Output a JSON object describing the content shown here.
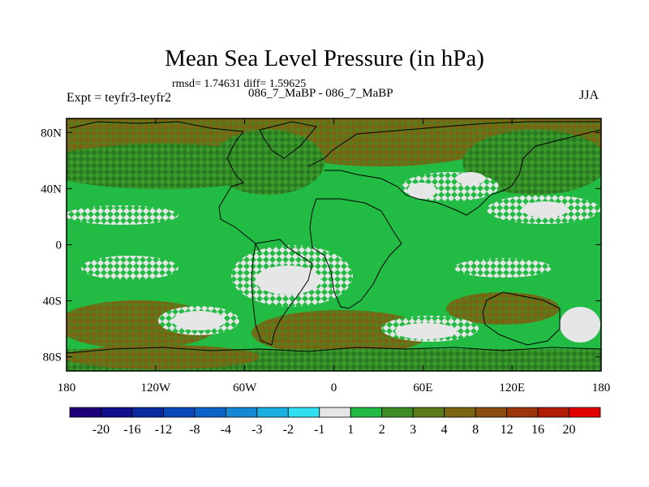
{
  "chart_data": {
    "type": "heatmap",
    "title": "Mean Sea Level Pressure (in hPa)",
    "subtitle": "rmsd= 1.74631 diff= 1.59625",
    "center_label": "086_7_MaBP - 086_7_MaBP",
    "left_label": "Expt = teyfr3-teyfr2",
    "right_label": "JJA",
    "x_axis": {
      "range": [
        -180,
        180
      ],
      "ticks": [
        {
          "value": -180,
          "label": "180"
        },
        {
          "value": -120,
          "label": "120W"
        },
        {
          "value": -60,
          "label": "60W"
        },
        {
          "value": 0,
          "label": "0"
        },
        {
          "value": 60,
          "label": "60E"
        },
        {
          "value": 120,
          "label": "120E"
        },
        {
          "value": 180,
          "label": "180"
        }
      ]
    },
    "y_axis": {
      "range": [
        -90,
        90
      ],
      "ticks": [
        {
          "value": 80,
          "label": "80N"
        },
        {
          "value": 40,
          "label": "40N"
        },
        {
          "value": 0,
          "label": "0"
        },
        {
          "value": -40,
          "label": "40S"
        },
        {
          "value": -80,
          "label": "80S"
        }
      ]
    },
    "colorbar": {
      "labels": [
        "-20",
        "-16",
        "-12",
        "-8",
        "-4",
        "-3",
        "-2",
        "-1",
        "1",
        "2",
        "3",
        "4",
        "8",
        "12",
        "16",
        "20"
      ],
      "colors": [
        "#20007a",
        "#10108c",
        "#0a2aa0",
        "#0a48b8",
        "#0a64c8",
        "#1488d4",
        "#1ab0e0",
        "#30e0f0",
        "#e6e6e6",
        "#22bb44",
        "#3c8c28",
        "#5a7a1c",
        "#7a6414",
        "#8a4e10",
        "#9a360a",
        "#b01c06",
        "#e00000"
      ]
    },
    "field_regions": [
      {
        "color": "#22bb44",
        "cells": "default"
      }
    ],
    "legend_position": "bottom"
  }
}
